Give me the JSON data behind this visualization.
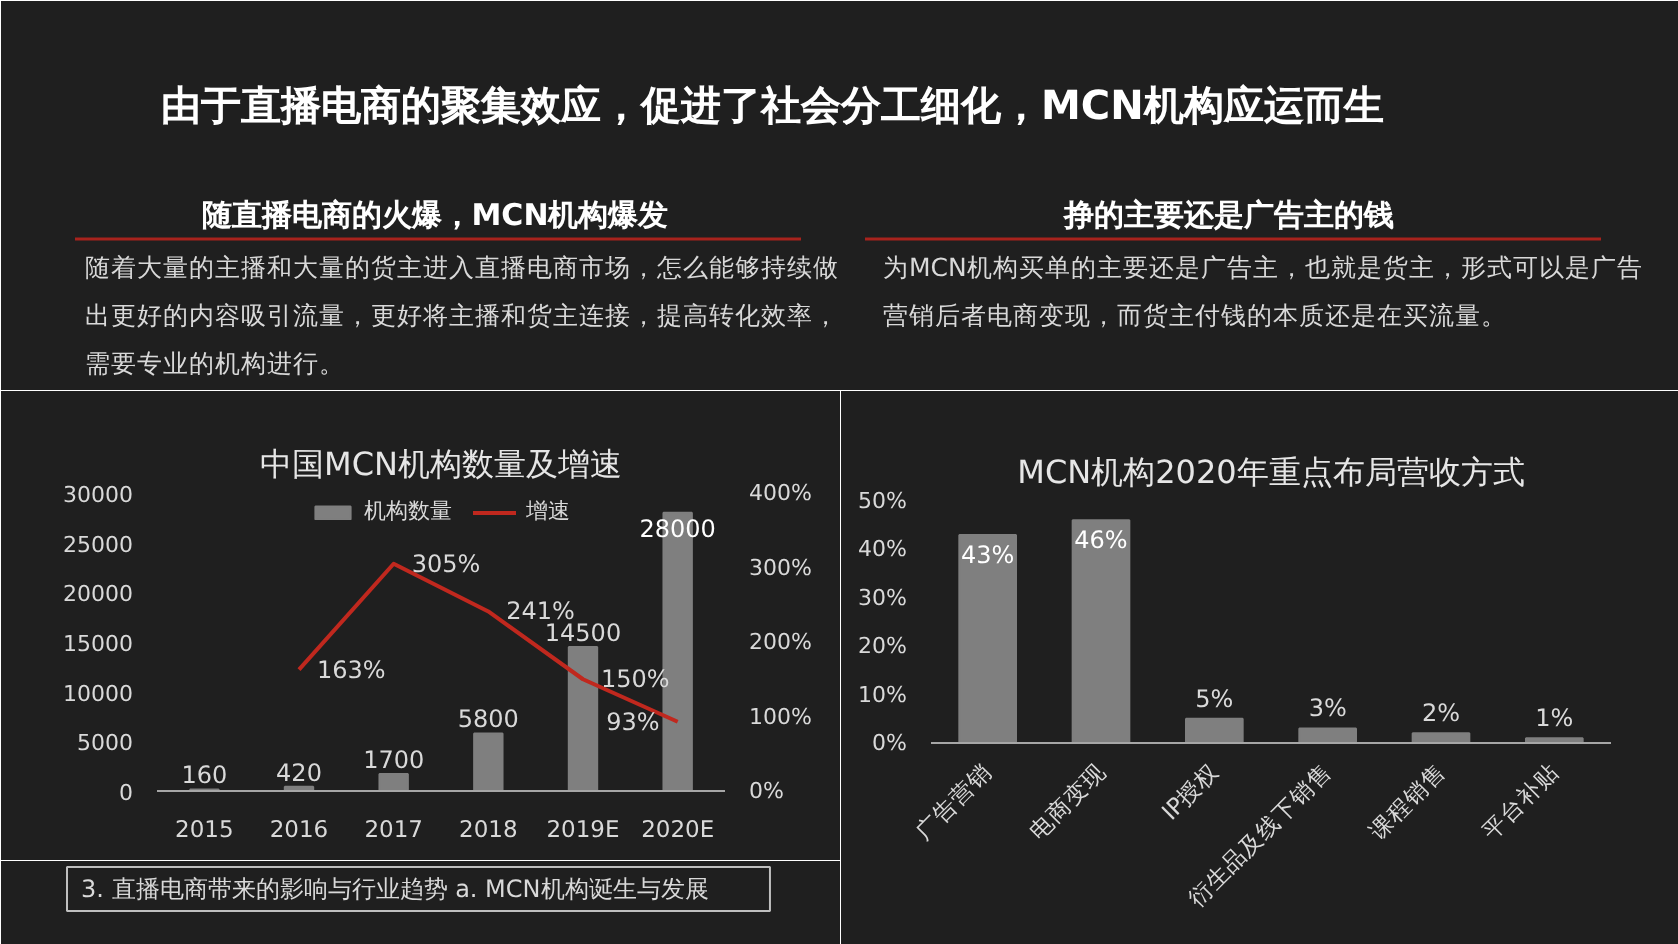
{
  "chart_data": [
    {
      "type": "other",
      "title": "由于直播电商的聚集效应，促进了社会分工细化，MCN机构应运而生",
      "annotations": [
        "3. 直播电商带来的影响与行业趋势  a. MCN机构诞生与发展"
      ]
    },
    {
      "type": "bar",
      "title": "中国MCN机构数量及增速",
      "annotations": [
        "随直播电商的火爆，MCN机构爆发",
        "随着大量的主播和大量的货主进入直播电商市场，怎么能够持续做出更好的内容吸引流量，更好将主播和货主连接，提高转化效率，需要专业的机构进行。"
      ],
      "categories": [
        "2015",
        "2016",
        "2017",
        "2018",
        "2019E",
        "2020E"
      ],
      "series": [
        {
          "name": "机构数量",
          "type": "bar",
          "color": "#7f7f7f",
          "values": [
            160,
            420,
            1700,
            5800,
            14500,
            28000
          ],
          "value_labels": [
            "160",
            "420",
            "1700",
            "5800",
            "14500",
            "28000"
          ]
        },
        {
          "name": "增速",
          "type": "line",
          "axis": "y2",
          "color": "#c0281e",
          "values": [
            null,
            163,
            305,
            241,
            150,
            93
          ],
          "value_labels": [
            null,
            "163%",
            "305%",
            "241%",
            "150%",
            "93%"
          ]
        }
      ],
      "ylim": [
        0,
        30000
      ],
      "yticks": [
        0,
        5000,
        10000,
        15000,
        20000,
        25000,
        30000
      ],
      "y2lim": [
        0,
        400
      ],
      "y2ticks": [
        {
          "value": 0,
          "label": "0%"
        },
        {
          "value": 100,
          "label": "100%"
        },
        {
          "value": 200,
          "label": "200%"
        },
        {
          "value": 300,
          "label": "300%"
        },
        {
          "value": 400,
          "label": "400%"
        }
      ],
      "legend": "top"
    },
    {
      "type": "bar",
      "title": "MCN机构2020年重点布局营收方式",
      "annotations": [
        "挣的主要还是广告主的钱",
        "为MCN机构买单的主要还是广告主，也就是货主，形式可以是广告营销后者电商变现，而货主付钱的本质还是在买流量。"
      ],
      "categories": [
        "广告营销",
        "电商变现",
        "IP授权",
        "衍生品及线下销售",
        "课程销售",
        "平台补贴"
      ],
      "values": [
        43,
        46,
        5,
        3,
        2,
        1
      ],
      "value_labels": [
        "43%",
        "46%",
        "5%",
        "3%",
        "2%",
        "1%"
      ],
      "color": "#7f7f7f",
      "ylim": [
        0,
        50
      ],
      "yticks": [
        {
          "value": 0,
          "label": "0%"
        },
        {
          "value": 10,
          "label": "10%"
        },
        {
          "value": 20,
          "label": "20%"
        },
        {
          "value": 30,
          "label": "30%"
        },
        {
          "value": 40,
          "label": "40%"
        },
        {
          "value": 50,
          "label": "50%"
        }
      ]
    }
  ]
}
